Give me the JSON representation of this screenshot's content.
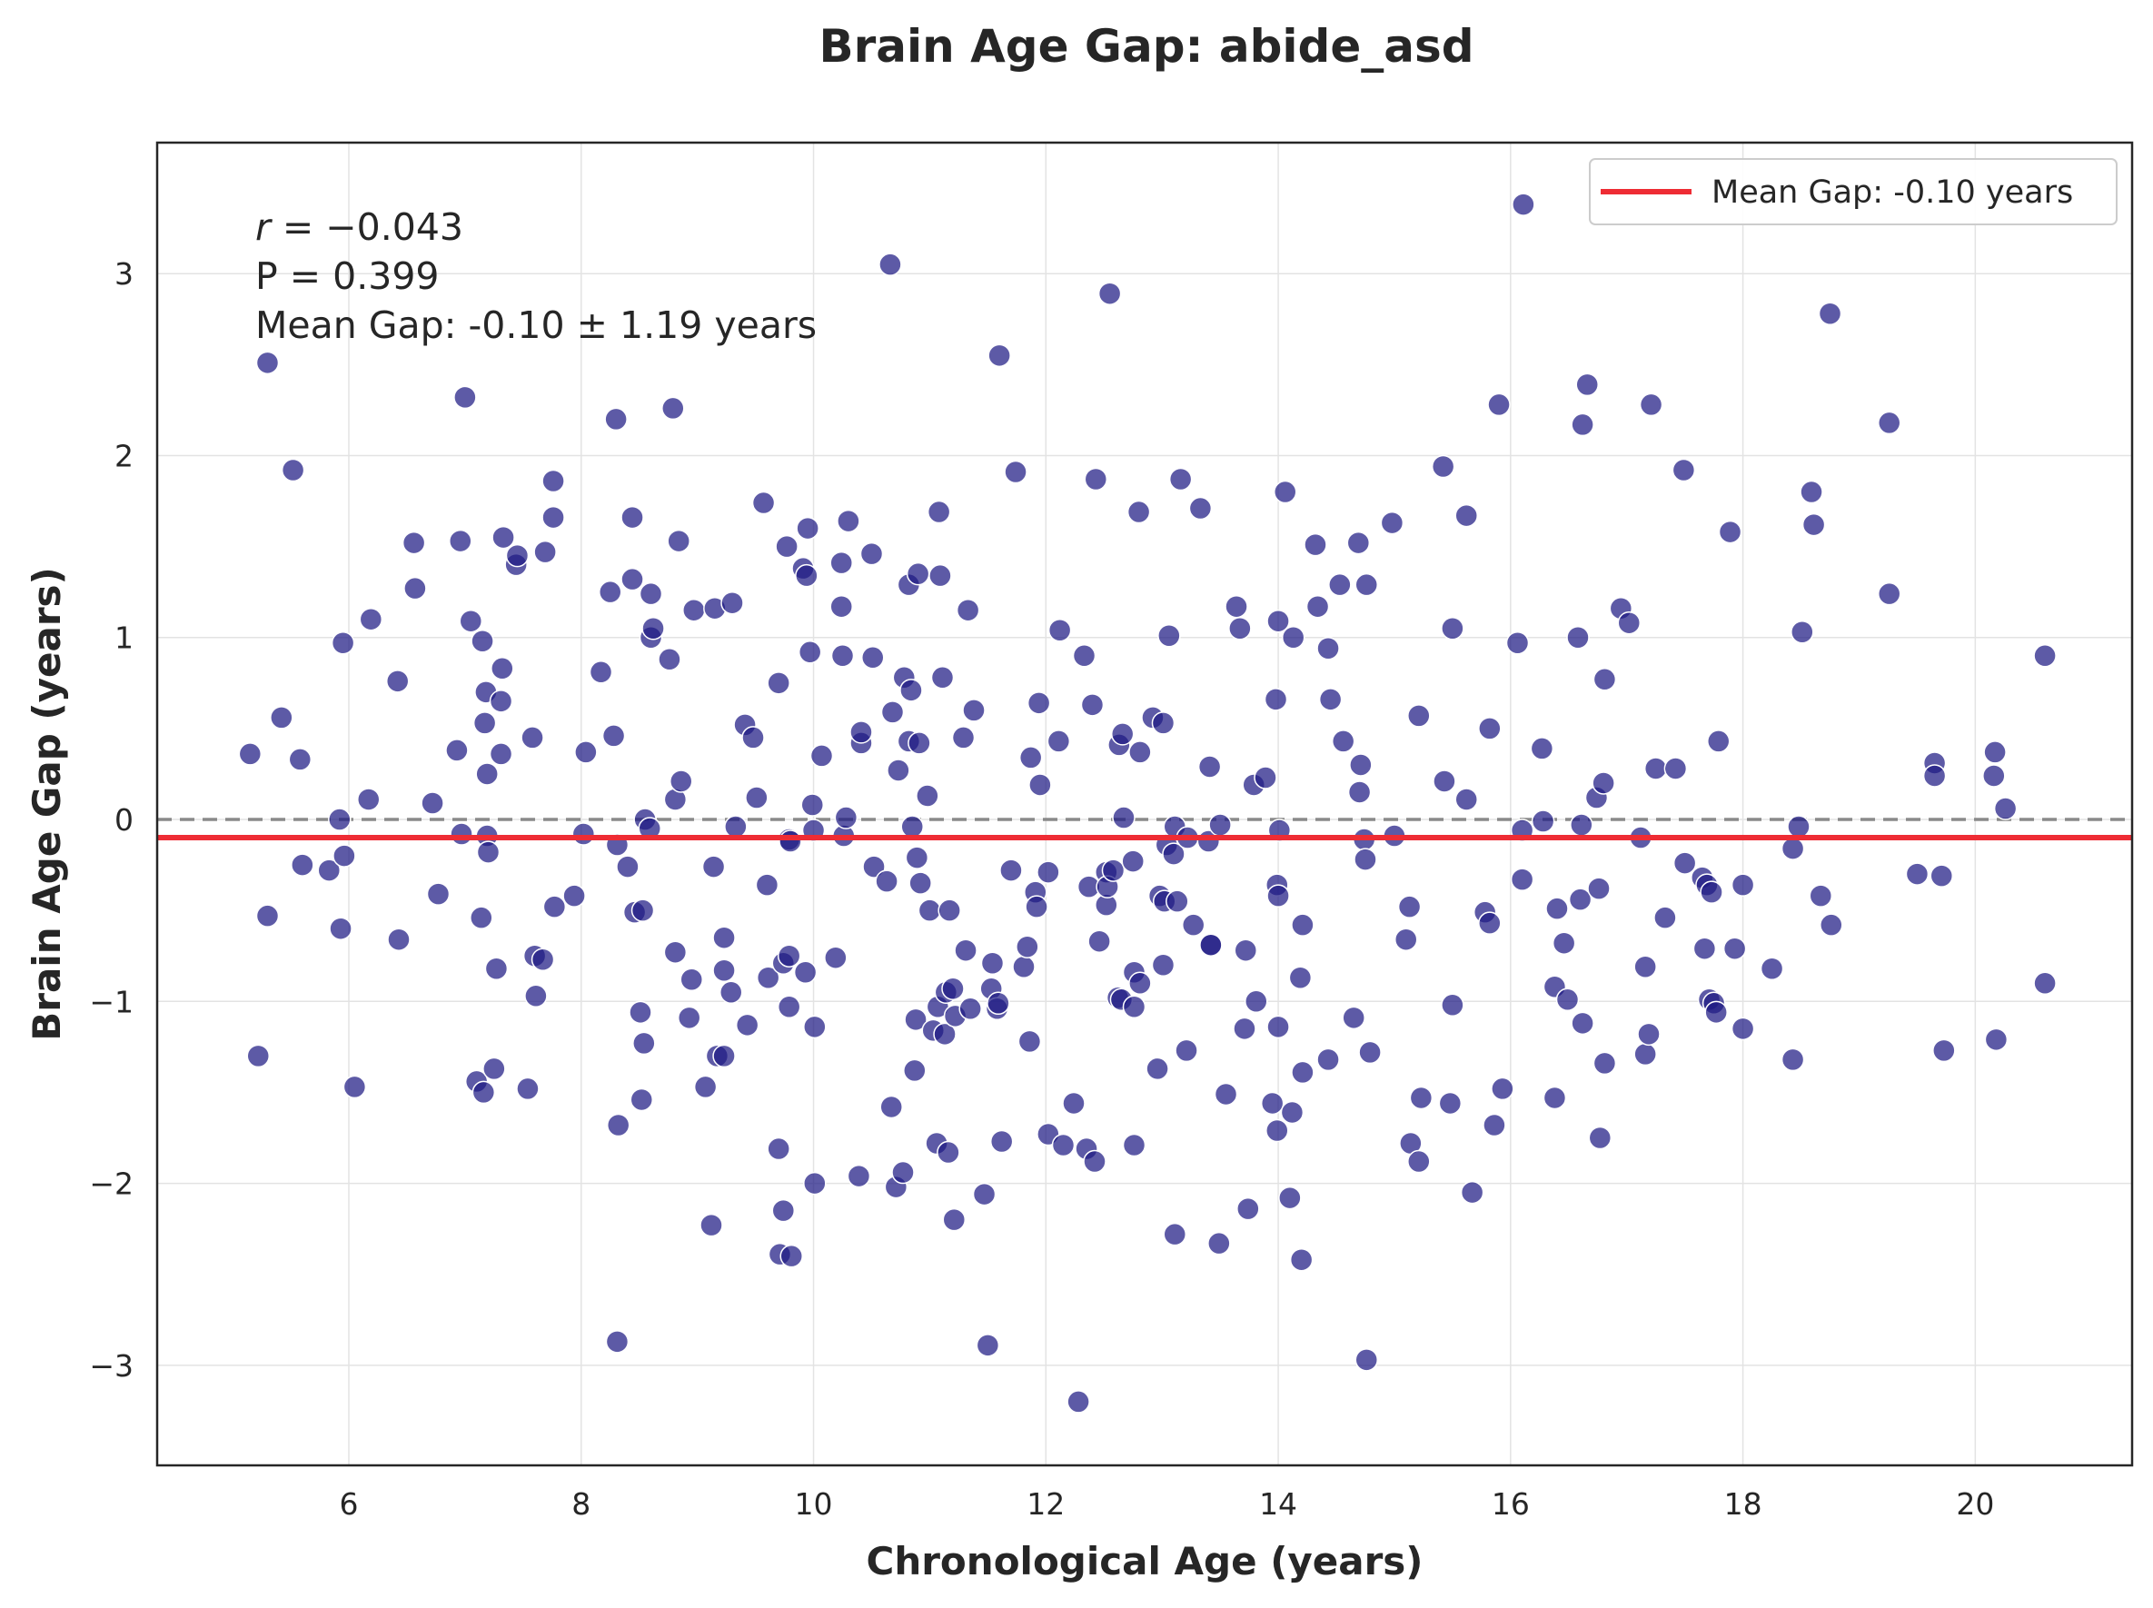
{
  "chart_data": {
    "type": "scatter",
    "title": "Brain Age Gap: abide_asd",
    "xlabel": "Chronological Age (years)",
    "ylabel": "Brain Age Gap (years)",
    "xlim": [
      4.35,
      21.35
    ],
    "ylim": [
      -3.55,
      3.72
    ],
    "xticks": [
      6,
      8,
      10,
      12,
      14,
      16,
      18,
      20
    ],
    "yticks": [
      3,
      2,
      1,
      0,
      -1,
      -2,
      -3
    ],
    "ytick_labels": [
      "3",
      "2",
      "1",
      "0",
      "−1",
      "−2",
      "−3"
    ],
    "grid": true,
    "stats": {
      "r_symbol": "r",
      "r_equals": " = −",
      "r_value": "0.043",
      "p_text": "P = 0.399",
      "mean_text": "Mean Gap: -0.10 ± 1.19 years"
    },
    "reference_line": {
      "y": 0,
      "style": "dashed",
      "color": "#8a8a8a"
    },
    "mean_line": {
      "y": -0.1,
      "color": "#ee2c34",
      "label": "Mean Gap: -0.10 years"
    },
    "legend_position": "top-right",
    "point_color": "#1f1b84",
    "points": [
      [
        5.15,
        0.36
      ],
      [
        5.22,
        -1.3
      ],
      [
        5.3,
        2.51
      ],
      [
        5.3,
        -0.53
      ],
      [
        5.42,
        0.56
      ],
      [
        5.52,
        1.92
      ],
      [
        5.58,
        0.33
      ],
      [
        5.6,
        -0.25
      ],
      [
        5.83,
        -0.28
      ],
      [
        5.92,
        0.0
      ],
      [
        5.93,
        -0.6
      ],
      [
        5.95,
        0.97
      ],
      [
        5.96,
        -0.2
      ],
      [
        6.05,
        -1.47
      ],
      [
        6.17,
        0.11
      ],
      [
        6.19,
        1.1
      ],
      [
        6.42,
        0.76
      ],
      [
        6.43,
        -0.66
      ],
      [
        6.56,
        1.52
      ],
      [
        6.57,
        1.27
      ],
      [
        6.72,
        0.09
      ],
      [
        6.77,
        -0.41
      ],
      [
        6.93,
        0.38
      ],
      [
        6.96,
        1.53
      ],
      [
        6.97,
        -0.08
      ],
      [
        7.0,
        2.32
      ],
      [
        7.05,
        1.09
      ],
      [
        7.1,
        -1.44
      ],
      [
        7.14,
        -0.54
      ],
      [
        7.15,
        0.98
      ],
      [
        7.16,
        -1.5
      ],
      [
        7.17,
        0.53
      ],
      [
        7.18,
        0.7
      ],
      [
        7.19,
        0.25
      ],
      [
        7.19,
        -0.09
      ],
      [
        7.2,
        -0.18
      ],
      [
        7.25,
        -1.37
      ],
      [
        7.27,
        -0.82
      ],
      [
        7.31,
        0.36
      ],
      [
        7.31,
        0.65
      ],
      [
        7.32,
        0.83
      ],
      [
        7.33,
        1.55
      ],
      [
        7.44,
        1.4
      ],
      [
        7.45,
        1.45
      ],
      [
        7.54,
        -1.48
      ],
      [
        7.58,
        0.45
      ],
      [
        7.6,
        -0.75
      ],
      [
        7.61,
        -0.97
      ],
      [
        7.67,
        -0.77
      ],
      [
        7.69,
        1.47
      ],
      [
        7.76,
        1.86
      ],
      [
        7.76,
        1.66
      ],
      [
        7.77,
        -0.48
      ],
      [
        7.94,
        -0.42
      ],
      [
        8.02,
        -0.08
      ],
      [
        8.04,
        0.37
      ],
      [
        8.17,
        0.81
      ],
      [
        8.25,
        1.25
      ],
      [
        8.28,
        0.46
      ],
      [
        8.3,
        2.2
      ],
      [
        8.31,
        -0.14
      ],
      [
        8.31,
        -2.87
      ],
      [
        8.32,
        -1.68
      ],
      [
        8.4,
        -0.26
      ],
      [
        8.44,
        1.32
      ],
      [
        8.44,
        1.66
      ],
      [
        8.46,
        -0.51
      ],
      [
        8.51,
        -1.06
      ],
      [
        8.52,
        -1.54
      ],
      [
        8.53,
        -0.5
      ],
      [
        8.54,
        -1.23
      ],
      [
        8.55,
        0.0
      ],
      [
        8.59,
        -0.05
      ],
      [
        8.6,
        1.24
      ],
      [
        8.6,
        1.0
      ],
      [
        8.62,
        1.05
      ],
      [
        8.76,
        0.88
      ],
      [
        8.79,
        2.26
      ],
      [
        8.81,
        0.11
      ],
      [
        8.81,
        -0.73
      ],
      [
        8.84,
        1.53
      ],
      [
        8.86,
        0.21
      ],
      [
        8.93,
        -1.09
      ],
      [
        8.95,
        -0.88
      ],
      [
        8.97,
        1.15
      ],
      [
        9.07,
        -1.47
      ],
      [
        9.12,
        -2.23
      ],
      [
        9.14,
        -0.26
      ],
      [
        9.15,
        1.16
      ],
      [
        9.17,
        -1.3
      ],
      [
        9.23,
        -1.3
      ],
      [
        9.23,
        -0.65
      ],
      [
        9.23,
        -0.83
      ],
      [
        9.29,
        -0.95
      ],
      [
        9.3,
        1.19
      ],
      [
        9.33,
        -0.04
      ],
      [
        9.41,
        0.52
      ],
      [
        9.43,
        -1.13
      ],
      [
        9.48,
        0.45
      ],
      [
        9.51,
        0.12
      ],
      [
        9.57,
        1.74
      ],
      [
        9.6,
        -0.36
      ],
      [
        9.61,
        -0.87
      ],
      [
        9.7,
        0.75
      ],
      [
        9.7,
        -1.81
      ],
      [
        9.71,
        -2.39
      ],
      [
        9.74,
        -2.15
      ],
      [
        9.74,
        -0.79
      ],
      [
        9.77,
        1.5
      ],
      [
        9.79,
        -0.75
      ],
      [
        9.79,
        -1.03
      ],
      [
        9.79,
        -0.11
      ],
      [
        9.8,
        -0.12
      ],
      [
        9.81,
        -2.4
      ],
      [
        9.91,
        1.38
      ],
      [
        9.93,
        -0.84
      ],
      [
        9.94,
        1.34
      ],
      [
        9.95,
        1.6
      ],
      [
        9.97,
        0.92
      ],
      [
        9.99,
        0.08
      ],
      [
        10.0,
        -0.06
      ],
      [
        10.01,
        -1.14
      ],
      [
        10.01,
        -2.0
      ],
      [
        10.07,
        0.35
      ],
      [
        10.19,
        -0.76
      ],
      [
        10.24,
        1.41
      ],
      [
        10.24,
        1.17
      ],
      [
        10.25,
        0.9
      ],
      [
        10.26,
        -0.09
      ],
      [
        10.28,
        0.01
      ],
      [
        10.3,
        1.64
      ],
      [
        10.39,
        -1.96
      ],
      [
        10.41,
        0.42
      ],
      [
        10.41,
        0.48
      ],
      [
        10.5,
        1.46
      ],
      [
        10.51,
        0.89
      ],
      [
        10.52,
        -0.26
      ],
      [
        10.63,
        -0.34
      ],
      [
        10.66,
        3.05
      ],
      [
        10.67,
        -1.58
      ],
      [
        10.68,
        0.59
      ],
      [
        10.71,
        -2.02
      ],
      [
        10.73,
        0.27
      ],
      [
        10.77,
        -1.94
      ],
      [
        10.78,
        0.78
      ],
      [
        10.82,
        1.29
      ],
      [
        10.82,
        0.43
      ],
      [
        10.84,
        0.71
      ],
      [
        10.85,
        -0.04
      ],
      [
        10.87,
        -1.38
      ],
      [
        10.88,
        -1.1
      ],
      [
        10.89,
        -0.21
      ],
      [
        10.9,
        1.35
      ],
      [
        10.91,
        0.42
      ],
      [
        10.92,
        -0.35
      ],
      [
        10.98,
        0.13
      ],
      [
        11.0,
        -0.5
      ],
      [
        11.03,
        -1.16
      ],
      [
        11.06,
        -1.78
      ],
      [
        11.07,
        -1.03
      ],
      [
        11.08,
        1.69
      ],
      [
        11.09,
        1.34
      ],
      [
        11.11,
        0.78
      ],
      [
        11.13,
        -1.18
      ],
      [
        11.14,
        -0.95
      ],
      [
        11.16,
        -1.83
      ],
      [
        11.17,
        -0.5
      ],
      [
        11.2,
        -0.93
      ],
      [
        11.21,
        -2.2
      ],
      [
        11.22,
        -1.08
      ],
      [
        11.29,
        0.45
      ],
      [
        11.31,
        -0.72
      ],
      [
        11.33,
        1.15
      ],
      [
        11.35,
        -1.04
      ],
      [
        11.38,
        0.6
      ],
      [
        11.47,
        -2.06
      ],
      [
        11.5,
        -2.89
      ],
      [
        11.53,
        -0.93
      ],
      [
        11.54,
        -0.79
      ],
      [
        11.58,
        -1.04
      ],
      [
        11.59,
        -1.01
      ],
      [
        11.6,
        2.55
      ],
      [
        11.62,
        -1.77
      ],
      [
        11.7,
        -0.28
      ],
      [
        11.74,
        1.91
      ],
      [
        11.81,
        -0.81
      ],
      [
        11.84,
        -0.7
      ],
      [
        11.86,
        -1.22
      ],
      [
        11.87,
        0.34
      ],
      [
        11.91,
        -0.4
      ],
      [
        11.92,
        -0.48
      ],
      [
        11.94,
        0.64
      ],
      [
        11.95,
        0.19
      ],
      [
        12.02,
        -1.73
      ],
      [
        12.02,
        -0.29
      ],
      [
        12.11,
        0.43
      ],
      [
        12.12,
        1.04
      ],
      [
        12.15,
        -1.79
      ],
      [
        12.24,
        -1.56
      ],
      [
        12.28,
        -3.2
      ],
      [
        12.33,
        0.9
      ],
      [
        12.35,
        -1.81
      ],
      [
        12.37,
        -0.37
      ],
      [
        12.4,
        0.63
      ],
      [
        12.42,
        -1.88
      ],
      [
        12.43,
        1.87
      ],
      [
        12.46,
        -0.67
      ],
      [
        12.52,
        -0.47
      ],
      [
        12.52,
        -0.29
      ],
      [
        12.53,
        -0.37
      ],
      [
        12.55,
        2.89
      ],
      [
        12.58,
        -0.28
      ],
      [
        12.62,
        -0.98
      ],
      [
        12.63,
        0.41
      ],
      [
        12.65,
        -0.99
      ],
      [
        12.66,
        0.47
      ],
      [
        12.67,
        0.01
      ],
      [
        12.75,
        -0.23
      ],
      [
        12.76,
        -1.03
      ],
      [
        12.76,
        -1.79
      ],
      [
        12.76,
        -0.84
      ],
      [
        12.8,
        1.69
      ],
      [
        12.81,
        0.37
      ],
      [
        12.81,
        -0.9
      ],
      [
        12.92,
        0.56
      ],
      [
        12.96,
        -1.37
      ],
      [
        12.98,
        -0.42
      ],
      [
        13.01,
        0.53
      ],
      [
        13.01,
        -0.8
      ],
      [
        13.02,
        -0.45
      ],
      [
        13.04,
        -0.14
      ],
      [
        13.06,
        1.01
      ],
      [
        13.1,
        -0.19
      ],
      [
        13.11,
        -2.28
      ],
      [
        13.11,
        -0.04
      ],
      [
        13.13,
        -0.45
      ],
      [
        13.16,
        1.87
      ],
      [
        13.21,
        -1.27
      ],
      [
        13.22,
        -0.1
      ],
      [
        13.27,
        -0.58
      ],
      [
        13.33,
        1.71
      ],
      [
        13.4,
        -0.12
      ],
      [
        13.41,
        0.29
      ],
      [
        13.42,
        -0.69
      ],
      [
        13.42,
        -0.69
      ],
      [
        13.49,
        -2.33
      ],
      [
        13.5,
        -0.03
      ],
      [
        13.55,
        -1.51
      ],
      [
        13.64,
        1.17
      ],
      [
        13.67,
        1.05
      ],
      [
        13.71,
        -1.15
      ],
      [
        13.72,
        -0.72
      ],
      [
        13.74,
        -2.14
      ],
      [
        13.79,
        0.19
      ],
      [
        13.81,
        -1.0
      ],
      [
        13.89,
        0.23
      ],
      [
        13.95,
        -1.56
      ],
      [
        13.98,
        0.66
      ],
      [
        13.99,
        -1.71
      ],
      [
        13.99,
        -0.36
      ],
      [
        14.0,
        1.09
      ],
      [
        14.0,
        -0.42
      ],
      [
        14.0,
        -1.14
      ],
      [
        14.01,
        -0.06
      ],
      [
        14.06,
        1.8
      ],
      [
        14.1,
        -2.08
      ],
      [
        14.12,
        -1.61
      ],
      [
        14.13,
        1.0
      ],
      [
        14.19,
        -0.87
      ],
      [
        14.2,
        -2.42
      ],
      [
        14.21,
        -1.39
      ],
      [
        14.21,
        -0.58
      ],
      [
        14.32,
        1.51
      ],
      [
        14.34,
        1.17
      ],
      [
        14.43,
        -1.32
      ],
      [
        14.43,
        0.94
      ],
      [
        14.45,
        0.66
      ],
      [
        14.53,
        1.29
      ],
      [
        14.56,
        0.43
      ],
      [
        14.65,
        -1.09
      ],
      [
        14.69,
        1.52
      ],
      [
        14.7,
        0.15
      ],
      [
        14.71,
        0.3
      ],
      [
        14.74,
        -0.11
      ],
      [
        14.75,
        -0.22
      ],
      [
        14.76,
        -2.97
      ],
      [
        14.76,
        1.29
      ],
      [
        14.79,
        -1.28
      ],
      [
        14.98,
        1.63
      ],
      [
        15.0,
        -0.09
      ],
      [
        15.1,
        -0.66
      ],
      [
        15.13,
        -0.48
      ],
      [
        15.14,
        -1.78
      ],
      [
        15.21,
        -1.88
      ],
      [
        15.21,
        0.57
      ],
      [
        15.23,
        -1.53
      ],
      [
        15.42,
        1.94
      ],
      [
        15.43,
        0.21
      ],
      [
        15.48,
        -1.56
      ],
      [
        15.5,
        -1.02
      ],
      [
        15.5,
        1.05
      ],
      [
        15.62,
        0.11
      ],
      [
        15.62,
        1.67
      ],
      [
        15.67,
        -2.05
      ],
      [
        15.78,
        -0.51
      ],
      [
        15.82,
        -0.57
      ],
      [
        15.82,
        0.5
      ],
      [
        15.86,
        -1.68
      ],
      [
        15.9,
        2.28
      ],
      [
        15.93,
        -1.48
      ],
      [
        16.06,
        0.97
      ],
      [
        16.1,
        -0.06
      ],
      [
        16.1,
        -0.33
      ],
      [
        16.11,
        3.38
      ],
      [
        16.27,
        0.39
      ],
      [
        16.28,
        -0.01
      ],
      [
        16.38,
        -1.53
      ],
      [
        16.38,
        -0.92
      ],
      [
        16.4,
        -0.49
      ],
      [
        16.46,
        -0.68
      ],
      [
        16.49,
        -0.99
      ],
      [
        16.58,
        1.0
      ],
      [
        16.6,
        -0.44
      ],
      [
        16.61,
        -0.03
      ],
      [
        16.62,
        -1.12
      ],
      [
        16.62,
        2.17
      ],
      [
        16.66,
        2.39
      ],
      [
        16.74,
        0.12
      ],
      [
        16.76,
        -0.38
      ],
      [
        16.77,
        -1.75
      ],
      [
        16.8,
        0.2
      ],
      [
        16.81,
        0.77
      ],
      [
        16.81,
        -1.34
      ],
      [
        16.95,
        1.16
      ],
      [
        17.02,
        1.08
      ],
      [
        17.12,
        -0.1
      ],
      [
        17.16,
        -0.81
      ],
      [
        17.16,
        -1.29
      ],
      [
        17.19,
        -1.18
      ],
      [
        17.21,
        2.28
      ],
      [
        17.25,
        0.28
      ],
      [
        17.33,
        -0.54
      ],
      [
        17.42,
        0.28
      ],
      [
        17.49,
        1.92
      ],
      [
        17.5,
        -0.24
      ],
      [
        17.65,
        -0.32
      ],
      [
        17.67,
        -0.71
      ],
      [
        17.69,
        -0.36
      ],
      [
        17.71,
        -0.99
      ],
      [
        17.73,
        -0.4
      ],
      [
        17.75,
        -1.01
      ],
      [
        17.77,
        -1.06
      ],
      [
        17.79,
        0.43
      ],
      [
        17.89,
        1.58
      ],
      [
        17.93,
        -0.71
      ],
      [
        18.0,
        -0.36
      ],
      [
        18.0,
        -1.15
      ],
      [
        18.25,
        -0.82
      ],
      [
        18.43,
        -0.16
      ],
      [
        18.43,
        -1.32
      ],
      [
        18.48,
        -0.04
      ],
      [
        18.51,
        1.03
      ],
      [
        18.59,
        1.8
      ],
      [
        18.61,
        1.62
      ],
      [
        18.67,
        -0.42
      ],
      [
        18.76,
        -0.58
      ],
      [
        18.75,
        2.78
      ],
      [
        19.26,
        2.18
      ],
      [
        19.26,
        1.24
      ],
      [
        19.5,
        -0.3
      ],
      [
        19.65,
        0.31
      ],
      [
        19.65,
        0.24
      ],
      [
        19.71,
        -0.31
      ],
      [
        19.73,
        -1.27
      ],
      [
        20.16,
        0.24
      ],
      [
        20.17,
        0.37
      ],
      [
        20.18,
        -1.21
      ],
      [
        20.26,
        0.06
      ],
      [
        20.6,
        0.9
      ],
      [
        20.6,
        -0.9
      ]
    ]
  }
}
